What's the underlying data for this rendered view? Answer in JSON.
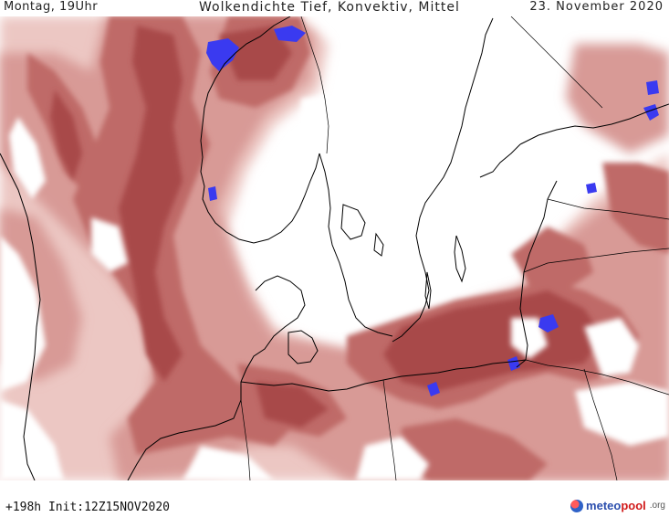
{
  "header": {
    "left": "Montag, 19Uhr",
    "center": "Wolkendichte  Tief, Konvektiv, Mittel",
    "right": "23. November 2020"
  },
  "footer": {
    "init": "+198h  Init:12Z15NOV2020"
  },
  "logo": {
    "brand_a": "meteo",
    "brand_b": "pool",
    "tld": ".org"
  },
  "colors": {
    "cloud_dark": "#a84a4a",
    "cloud_mid": "#bf6a68",
    "cloud_light": "#d89a96",
    "cloud_pale": "#ecc7c3",
    "convective": "#3a3af0",
    "coast": "#000000"
  }
}
